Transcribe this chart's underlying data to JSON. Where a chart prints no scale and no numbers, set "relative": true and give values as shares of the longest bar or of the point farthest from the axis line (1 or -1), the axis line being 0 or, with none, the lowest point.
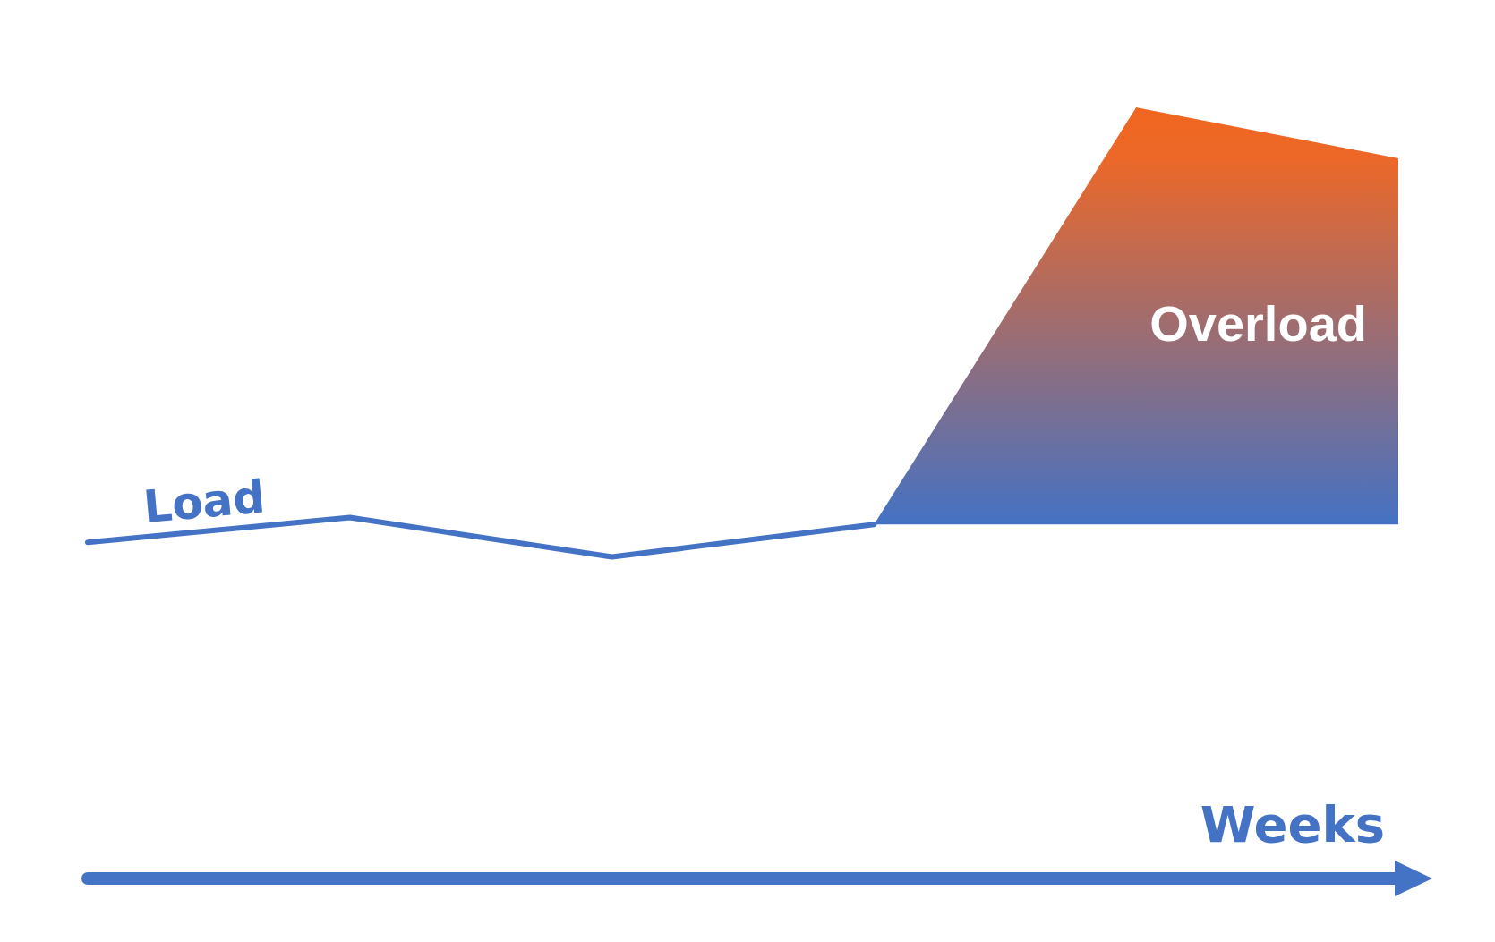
{
  "chart_data": {
    "type": "line",
    "relative": true,
    "xlabel": "Weeks",
    "categories": [
      null,
      null,
      null,
      null,
      null,
      null
    ],
    "series": [
      {
        "name": "Load",
        "type": "line",
        "color": "#4472c4",
        "values": [
          0.436,
          0.468,
          0.417,
          0.459,
          null,
          null
        ]
      },
      {
        "name": "Overload",
        "type": "area",
        "colors": [
          null,
          null,
          null,
          "#4472c4",
          "#f0661f",
          "#ec6828"
        ],
        "values": [
          null,
          null,
          null,
          0.459,
          1,
          0.934
        ]
      }
    ]
  }
}
